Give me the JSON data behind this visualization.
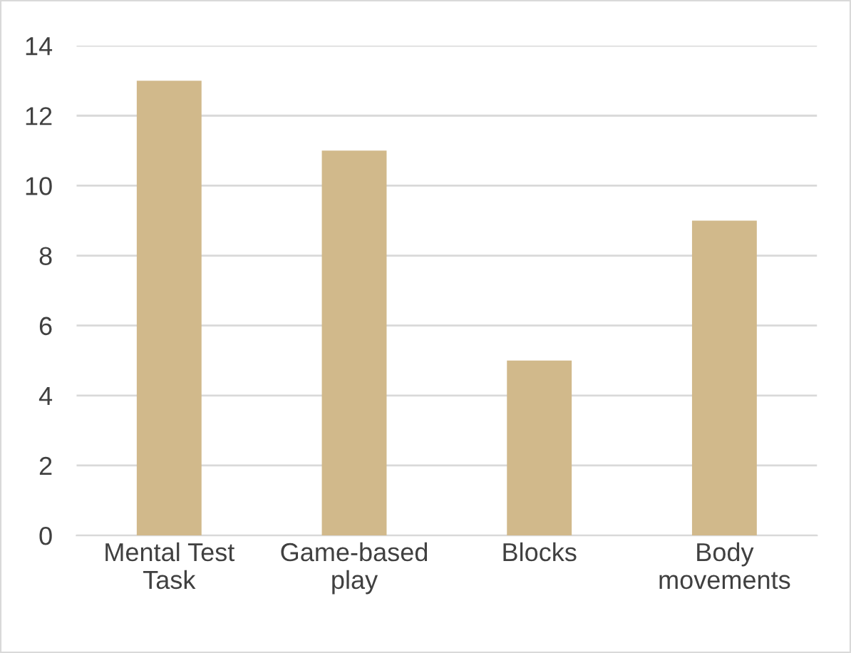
{
  "chart_data": {
    "type": "bar",
    "categories": [
      "Mental Test\nTask",
      "Game-based\nplay",
      "Blocks",
      "Body\nmovements"
    ],
    "values": [
      13,
      11,
      5,
      9
    ],
    "color": "#d1b98b",
    "ylim": [
      0,
      14
    ],
    "yticks": [
      0,
      2,
      4,
      6,
      8,
      10,
      12,
      14
    ],
    "grid": "y"
  }
}
